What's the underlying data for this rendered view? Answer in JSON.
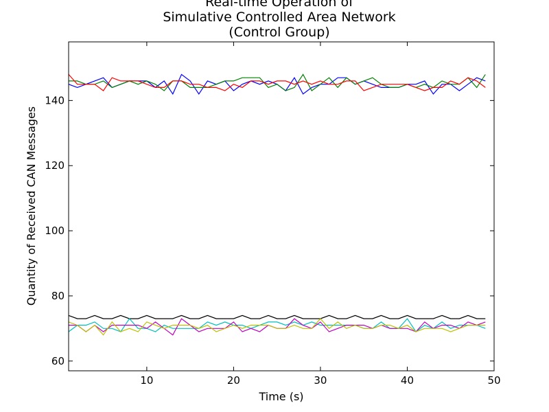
{
  "chart_data": {
    "type": "line",
    "title_lines": [
      "Real-time Operation of",
      "Simulative Controlled Area Network",
      "(Control Group)"
    ],
    "xlabel": "Time (s)",
    "ylabel": "Quantity of Received CAN Messages",
    "xlim": [
      1,
      50
    ],
    "ylim": [
      57,
      158
    ],
    "xticks": [
      10,
      20,
      30,
      40,
      50
    ],
    "yticks": [
      60,
      80,
      100,
      120,
      140
    ],
    "grid": false,
    "x": [
      1,
      2,
      3,
      4,
      5,
      6,
      7,
      8,
      9,
      10,
      11,
      12,
      13,
      14,
      15,
      16,
      17,
      18,
      19,
      20,
      21,
      22,
      23,
      24,
      25,
      26,
      27,
      28,
      29,
      30,
      31,
      32,
      33,
      34,
      35,
      36,
      37,
      38,
      39,
      40,
      41,
      42,
      43,
      44,
      45,
      46,
      47,
      48,
      49
    ],
    "series": [
      {
        "color": "#0000ff",
        "values": [
          145,
          144,
          145,
          146,
          147,
          144,
          145,
          146,
          146,
          146,
          144,
          146,
          142,
          148,
          146,
          142,
          146,
          145,
          146,
          143,
          145,
          146,
          145,
          146,
          145,
          143,
          147,
          142,
          144,
          145,
          145,
          147,
          147,
          145,
          146,
          145,
          144,
          144,
          144,
          145,
          145,
          146,
          142,
          145,
          145,
          143,
          145,
          147,
          146
        ]
      },
      {
        "color": "#008000",
        "values": [
          146,
          146,
          145,
          145,
          146,
          144,
          145,
          146,
          145,
          146,
          145,
          143,
          146,
          146,
          144,
          144,
          144,
          145,
          146,
          146,
          147,
          147,
          147,
          144,
          145,
          143,
          144,
          148,
          143,
          145,
          147,
          144,
          147,
          145,
          146,
          147,
          145,
          144,
          144,
          145,
          144,
          145,
          144,
          146,
          145,
          145,
          147,
          144,
          148
        ]
      },
      {
        "color": "#ff0000",
        "values": [
          148,
          145,
          145,
          145,
          143,
          147,
          146,
          146,
          146,
          145,
          144,
          144,
          146,
          146,
          145,
          145,
          144,
          144,
          143,
          145,
          144,
          146,
          146,
          145,
          146,
          146,
          145,
          146,
          145,
          146,
          145,
          145,
          146,
          146,
          143,
          144,
          145,
          145,
          145,
          145,
          144,
          143,
          144,
          144,
          146,
          145,
          147,
          146,
          144
        ]
      },
      {
        "color": "#000000",
        "values": [
          74,
          73,
          73,
          74,
          73,
          73,
          74,
          73,
          73,
          74,
          73,
          73,
          73,
          74,
          73,
          73,
          74,
          73,
          73,
          73,
          74,
          73,
          73,
          74,
          73,
          73,
          74,
          73,
          73,
          73,
          74,
          73,
          73,
          74,
          73,
          73,
          74,
          73,
          73,
          74,
          73,
          73,
          73,
          74,
          73,
          73,
          74,
          73,
          73
        ]
      },
      {
        "color": "#00bfbf",
        "values": [
          69,
          71,
          71,
          72,
          70,
          70,
          69,
          73,
          70,
          70,
          69,
          71,
          70,
          70,
          70,
          70,
          72,
          71,
          72,
          71,
          71,
          70,
          71,
          72,
          72,
          71,
          72,
          71,
          72,
          71,
          71,
          71,
          71,
          71,
          70,
          70,
          72,
          70,
          70,
          73,
          69,
          71,
          70,
          72,
          70,
          71,
          71,
          71,
          70
        ]
      },
      {
        "color": "#bf00bf",
        "values": [
          71,
          71,
          69,
          71,
          69,
          71,
          71,
          71,
          71,
          70,
          72,
          70,
          68,
          73,
          71,
          69,
          70,
          70,
          70,
          72,
          69,
          70,
          69,
          71,
          70,
          70,
          73,
          71,
          70,
          72,
          69,
          70,
          71,
          71,
          71,
          70,
          71,
          70,
          70,
          70,
          69,
          72,
          70,
          71,
          71,
          70,
          72,
          71,
          72
        ]
      },
      {
        "color": "#bfbf00",
        "values": [
          72,
          71,
          69,
          71,
          68,
          72,
          69,
          70,
          69,
          72,
          71,
          70,
          71,
          71,
          71,
          70,
          71,
          69,
          70,
          71,
          70,
          71,
          71,
          71,
          70,
          70,
          71,
          70,
          70,
          73,
          70,
          72,
          70,
          71,
          70,
          70,
          71,
          71,
          70,
          71,
          69,
          70,
          70,
          70,
          69,
          70,
          71,
          71,
          71
        ]
      }
    ]
  }
}
